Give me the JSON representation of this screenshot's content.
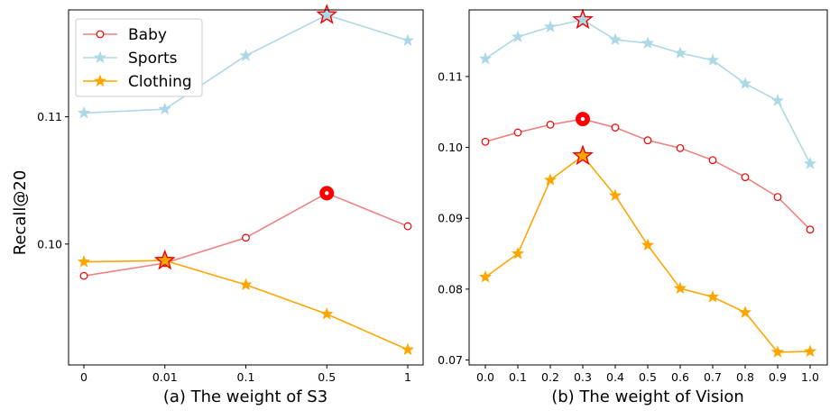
{
  "chart_data": [
    {
      "type": "line",
      "panel": "a",
      "xlabel": "(a) The weight of S3",
      "ylabel": "Recall@20",
      "categories": [
        "0",
        "0.01",
        "0.1",
        "0.5",
        "1"
      ],
      "ylim": [
        0.0905,
        0.1184
      ],
      "yticks": [
        0.1,
        0.11
      ],
      "ytick_labels": [
        "0.10",
        "0.11"
      ],
      "series": [
        {
          "name": "Baby",
          "color": "#f08080",
          "marker": "circle",
          "values": [
            0.0975,
            0.0985,
            0.1005,
            0.104,
            0.1014
          ],
          "highlight_index": 3
        },
        {
          "name": "Sports",
          "color": "#add8e6",
          "marker": "star",
          "values": [
            0.1103,
            0.1106,
            0.1148,
            0.118,
            0.116
          ],
          "highlight_index": 3
        },
        {
          "name": "Clothing",
          "color": "#ffa500",
          "marker": "star",
          "values": [
            0.0986,
            0.0987,
            0.0968,
            0.0945,
            0.0917
          ],
          "highlight_index": 1
        }
      ],
      "legend": {
        "position": "top-left",
        "entries": [
          "Baby",
          "Sports",
          "Clothing"
        ]
      }
    },
    {
      "type": "line",
      "panel": "b",
      "xlabel": "(b) The weight of Vision",
      "ylabel": "",
      "categories": [
        "0.0",
        "0.1",
        "0.2",
        "0.3",
        "0.4",
        "0.5",
        "0.6",
        "0.7",
        "0.8",
        "0.9",
        "1.0"
      ],
      "ylim": [
        0.0693,
        0.1194
      ],
      "yticks": [
        0.07,
        0.08,
        0.09,
        0.1,
        0.11
      ],
      "ytick_labels": [
        "0.07",
        "0.08",
        "0.09",
        "0.10",
        "0.11"
      ],
      "series": [
        {
          "name": "Baby",
          "color": "#f08080",
          "marker": "circle",
          "values": [
            0.1008,
            0.1021,
            0.1032,
            0.104,
            0.1028,
            0.101,
            0.0999,
            0.0982,
            0.0958,
            0.093,
            0.0884
          ],
          "highlight_index": 3
        },
        {
          "name": "Sports",
          "color": "#add8e6",
          "marker": "star",
          "values": [
            0.1125,
            0.1156,
            0.117,
            0.118,
            0.1152,
            0.1147,
            0.1133,
            0.1123,
            0.109,
            0.1066,
            0.0977
          ],
          "highlight_index": 3
        },
        {
          "name": "Clothing",
          "color": "#ffa500",
          "marker": "star",
          "values": [
            0.0817,
            0.085,
            0.0954,
            0.0988,
            0.0932,
            0.0862,
            0.0801,
            0.0789,
            0.0767,
            0.0711,
            0.0712
          ],
          "highlight_index": 3
        }
      ]
    }
  ]
}
